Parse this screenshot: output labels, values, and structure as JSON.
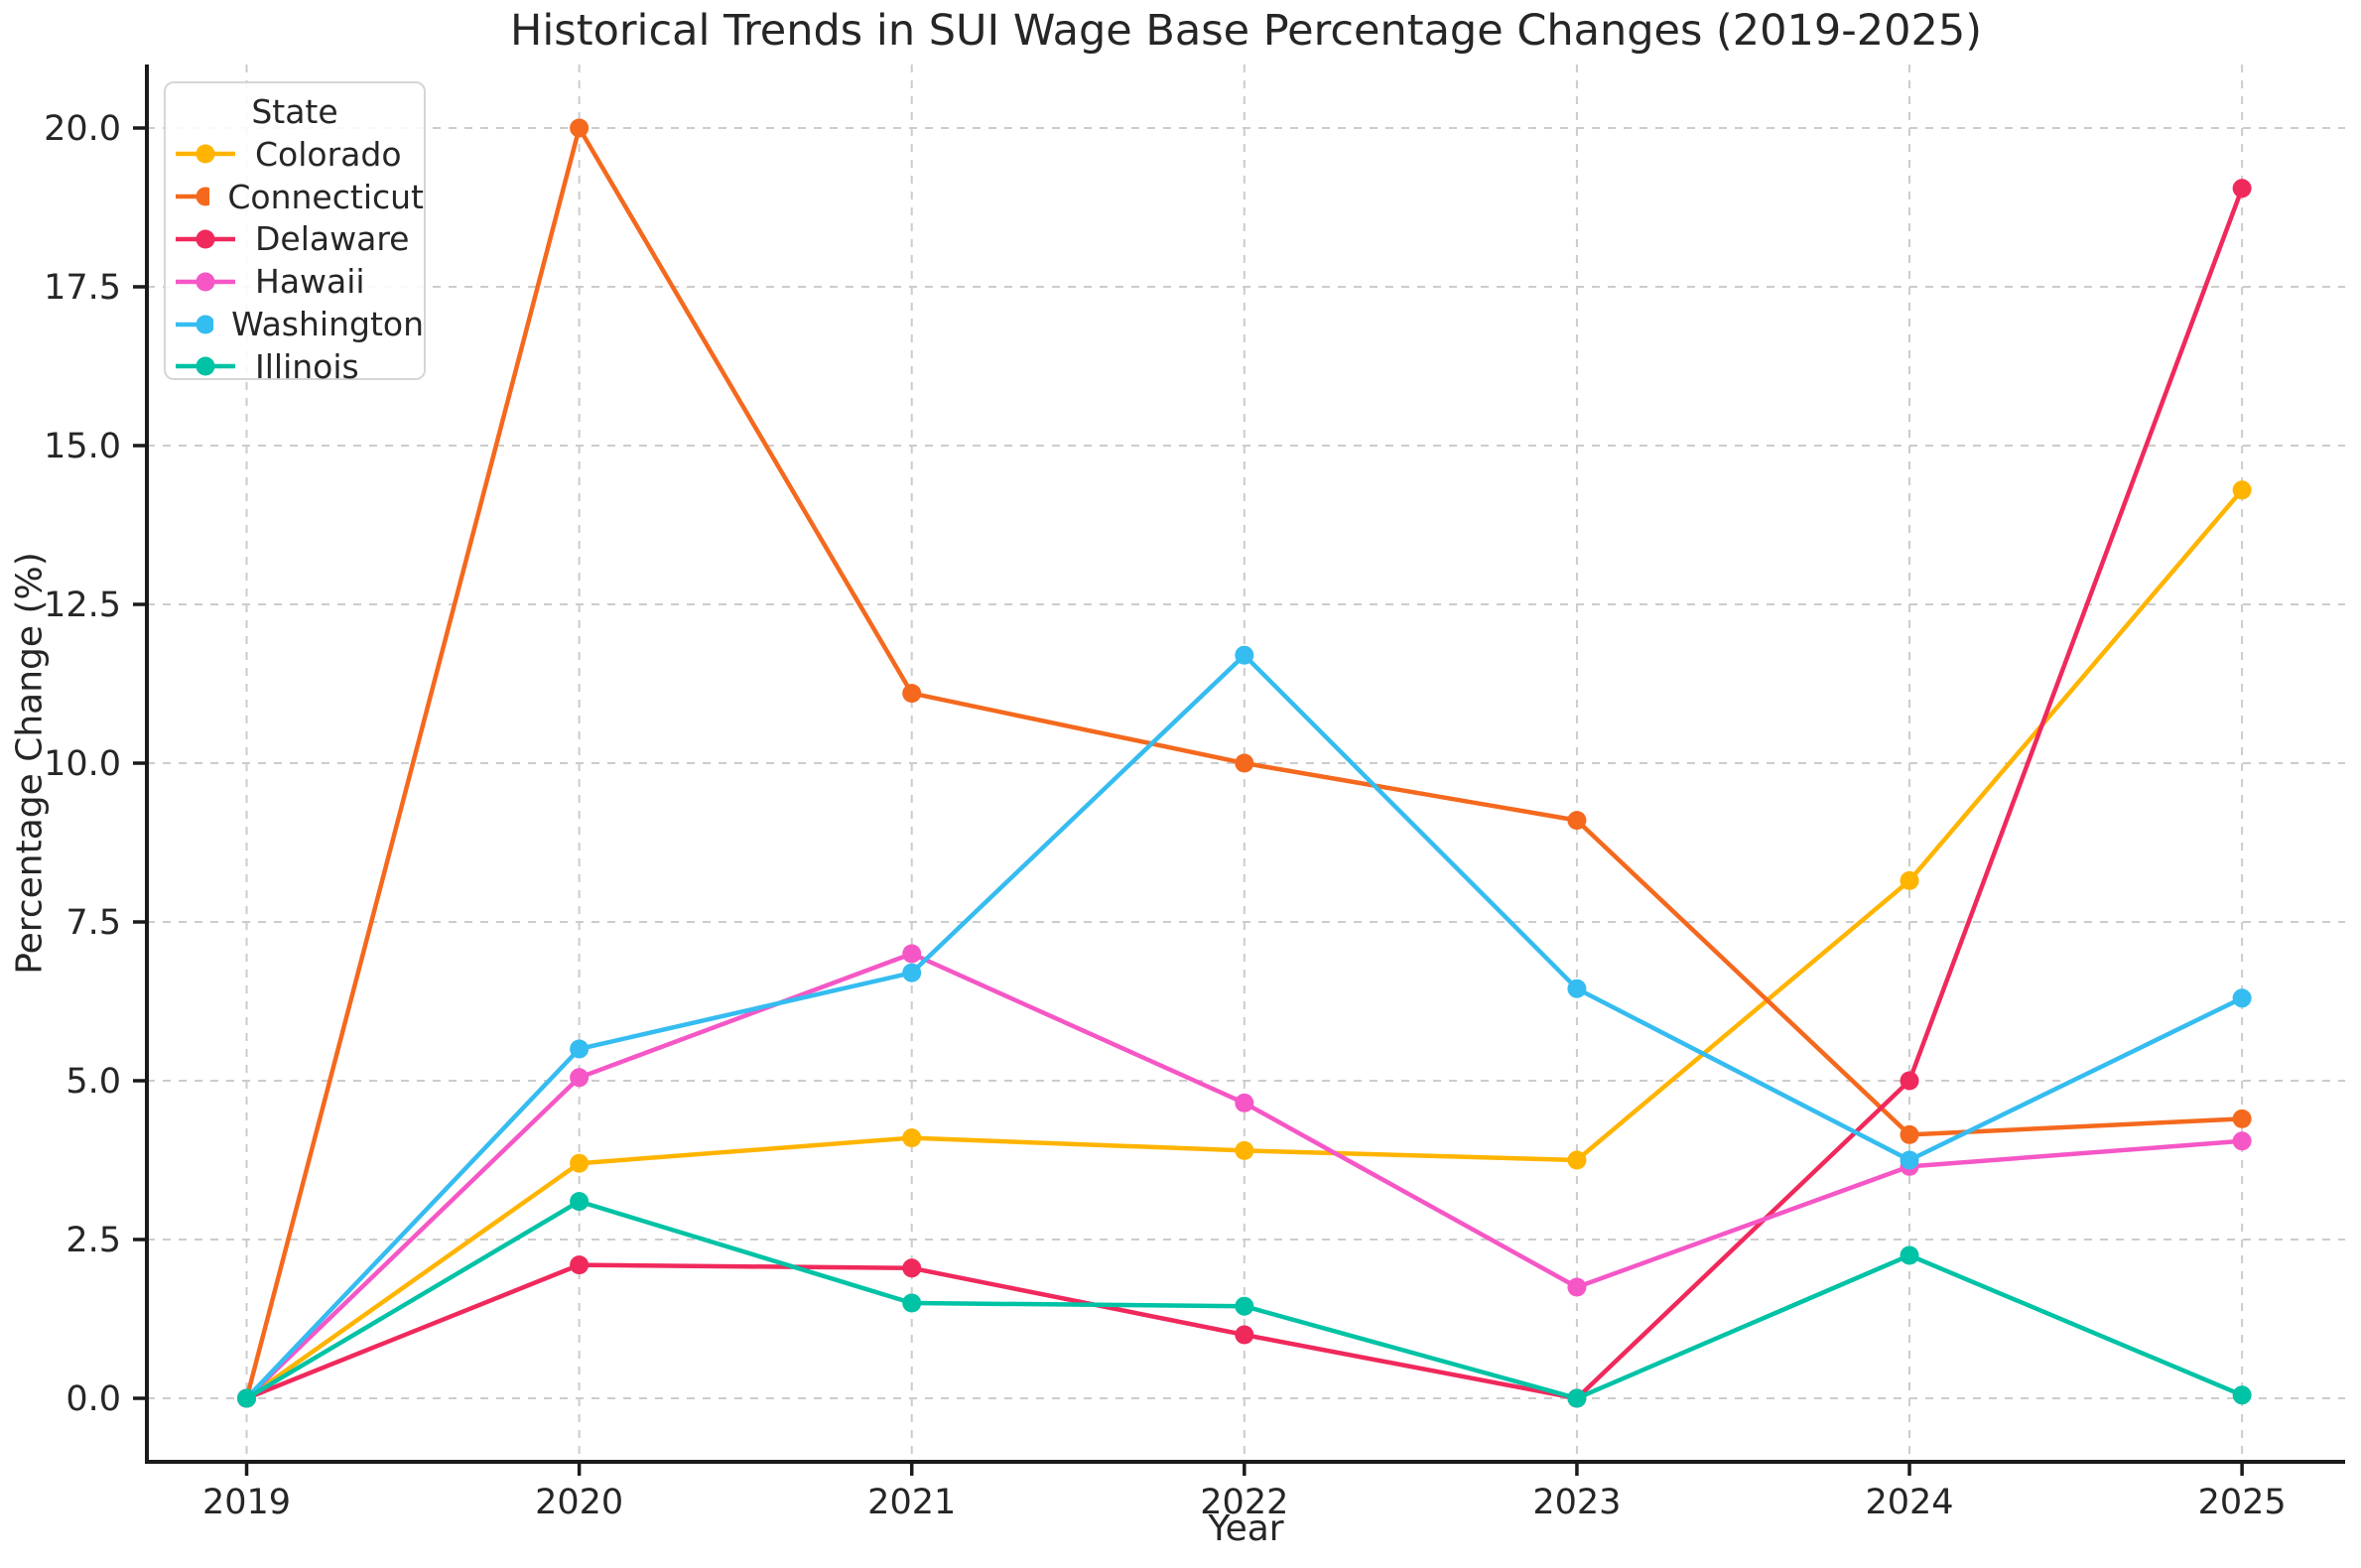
{
  "chart_data": {
    "type": "line",
    "title": "Historical Trends in SUI Wage Base Percentage Changes (2019-2025)",
    "xlabel": "Year",
    "ylabel": "Percentage Change (%)",
    "x": [
      2019,
      2020,
      2021,
      2022,
      2023,
      2024,
      2025
    ],
    "xtick_labels": [
      "2019",
      "2020",
      "2021",
      "2022",
      "2023",
      "2024",
      "2025"
    ],
    "yticks": [
      0,
      2.5,
      5,
      7.5,
      10,
      12.5,
      15,
      17.5,
      20
    ],
    "ytick_labels": [
      "0.0",
      "2.5",
      "5.0",
      "7.5",
      "10.0",
      "12.5",
      "15.0",
      "17.5",
      "20.0"
    ],
    "xlim": [
      2018.7,
      2025.31
    ],
    "ylim": [
      -1,
      21
    ],
    "grid": true,
    "grid_style": "dashed",
    "legend": {
      "title": "State",
      "position": "upper-left"
    },
    "series": [
      {
        "name": "Colorado",
        "color": "#FFB400",
        "values": [
          0.0,
          3.7,
          4.1,
          3.9,
          3.75,
          8.15,
          14.3
        ]
      },
      {
        "name": "Connecticut",
        "color": "#F4691E",
        "values": [
          0.0,
          20.0,
          11.1,
          10.0,
          9.1,
          4.15,
          4.4
        ]
      },
      {
        "name": "Delaware",
        "color": "#F0295C",
        "values": [
          0.0,
          2.1,
          2.05,
          1.0,
          0.0,
          5.0,
          19.05
        ]
      },
      {
        "name": "Hawaii",
        "color": "#F557C6",
        "values": [
          0.0,
          5.05,
          7.0,
          4.65,
          1.75,
          3.65,
          4.05
        ]
      },
      {
        "name": "Washington",
        "color": "#35BCF0",
        "values": [
          0.0,
          5.5,
          6.7,
          11.7,
          6.45,
          3.75,
          6.3
        ]
      },
      {
        "name": "Illinois",
        "color": "#00C2A5",
        "values": [
          0.0,
          3.1,
          1.5,
          1.45,
          0.0,
          2.25,
          0.05
        ]
      }
    ]
  }
}
